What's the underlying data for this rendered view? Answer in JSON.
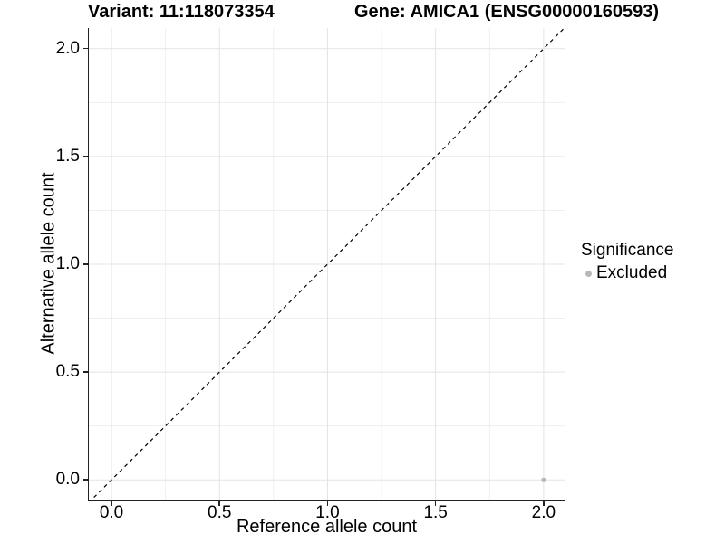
{
  "header": {
    "title_left": "Variant: 11:118073354",
    "title_right": "Gene: AMICA1 (ENSG00000160593)"
  },
  "chart_data": {
    "type": "scatter",
    "title_left": "Variant: 11:118073354",
    "title_right": "Gene: AMICA1 (ENSG00000160593)",
    "xlabel": "Reference allele count",
    "ylabel": "Alternative allele count",
    "xticks": [
      0.0,
      0.5,
      1.0,
      1.5,
      2.0
    ],
    "yticks": [
      0.0,
      0.5,
      1.0,
      1.5,
      2.0
    ],
    "xlim": [
      -0.105,
      2.097
    ],
    "ylim": [
      -0.0945,
      2.0945
    ],
    "tick_format_decimals": 1,
    "grid": {
      "major": true,
      "minor": true
    },
    "points": [
      {
        "x": 2.0,
        "y": 0.0,
        "series": "Excluded"
      }
    ],
    "reference_line": {
      "type": "abline",
      "slope": 1,
      "intercept": 0,
      "style": "dashed"
    },
    "legend": {
      "title": "Significance",
      "position": "right",
      "items": [
        {
          "label": "Excluded",
          "color": "#b8b8b8"
        }
      ]
    }
  },
  "colors": {
    "background": "#ffffff",
    "point": "#b8b8b8",
    "grid_major": "#e3e3e3",
    "grid_minor": "#efefef",
    "axis_line": "#222222",
    "dashed_line": "#000000",
    "text": "#000000"
  }
}
